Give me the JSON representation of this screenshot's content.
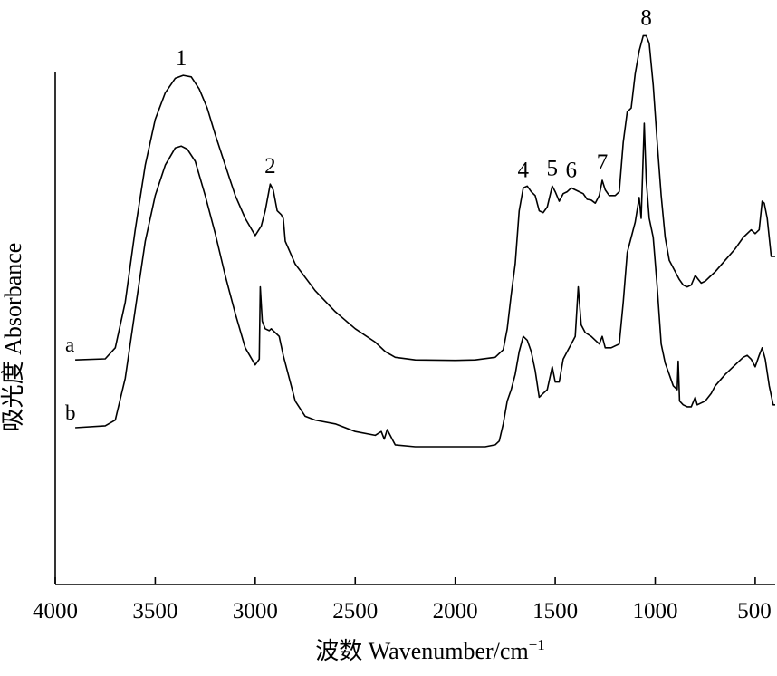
{
  "chart_data": {
    "type": "line",
    "xlabel": "波数 Wavenumber/cm",
    "xlabel_sup": "−1",
    "ylabel": "吸光度 Absorbance",
    "xlim": [
      4000,
      400
    ],
    "x_reversed": true,
    "y_tick_labels": false,
    "grid": false,
    "x_ticks": [
      4000,
      3500,
      3000,
      2500,
      2000,
      1500,
      1000,
      500
    ],
    "series": [
      {
        "name": "a",
        "label": "a",
        "color": "#000000",
        "points": [
          [
            3900,
            0.128
          ],
          [
            3750,
            0.131
          ],
          [
            3700,
            0.16
          ],
          [
            3650,
            0.28
          ],
          [
            3600,
            0.47
          ],
          [
            3550,
            0.64
          ],
          [
            3500,
            0.76
          ],
          [
            3450,
            0.83
          ],
          [
            3400,
            0.868
          ],
          [
            3360,
            0.876
          ],
          [
            3320,
            0.872
          ],
          [
            3280,
            0.84
          ],
          [
            3240,
            0.79
          ],
          [
            3200,
            0.72
          ],
          [
            3150,
            0.64
          ],
          [
            3100,
            0.56
          ],
          [
            3050,
            0.5
          ],
          [
            3000,
            0.455
          ],
          [
            2970,
            0.48
          ],
          [
            2950,
            0.52
          ],
          [
            2925,
            0.59
          ],
          [
            2910,
            0.575
          ],
          [
            2890,
            0.52
          ],
          [
            2870,
            0.51
          ],
          [
            2860,
            0.5
          ],
          [
            2850,
            0.44
          ],
          [
            2800,
            0.38
          ],
          [
            2700,
            0.31
          ],
          [
            2600,
            0.255
          ],
          [
            2500,
            0.21
          ],
          [
            2400,
            0.175
          ],
          [
            2350,
            0.15
          ],
          [
            2300,
            0.135
          ],
          [
            2200,
            0.128
          ],
          [
            2000,
            0.127
          ],
          [
            1900,
            0.128
          ],
          [
            1800,
            0.135
          ],
          [
            1760,
            0.155
          ],
          [
            1740,
            0.21
          ],
          [
            1720,
            0.3
          ],
          [
            1700,
            0.38
          ],
          [
            1680,
            0.52
          ],
          [
            1660,
            0.58
          ],
          [
            1640,
            0.585
          ],
          [
            1620,
            0.57
          ],
          [
            1600,
            0.56
          ],
          [
            1580,
            0.52
          ],
          [
            1560,
            0.515
          ],
          [
            1540,
            0.53
          ],
          [
            1515,
            0.585
          ],
          [
            1500,
            0.57
          ],
          [
            1480,
            0.545
          ],
          [
            1460,
            0.565
          ],
          [
            1440,
            0.57
          ],
          [
            1420,
            0.58
          ],
          [
            1400,
            0.575
          ],
          [
            1380,
            0.57
          ],
          [
            1360,
            0.565
          ],
          [
            1340,
            0.55
          ],
          [
            1320,
            0.548
          ],
          [
            1300,
            0.54
          ],
          [
            1280,
            0.56
          ],
          [
            1265,
            0.6
          ],
          [
            1250,
            0.575
          ],
          [
            1230,
            0.56
          ],
          [
            1200,
            0.56
          ],
          [
            1180,
            0.57
          ],
          [
            1160,
            0.7
          ],
          [
            1140,
            0.78
          ],
          [
            1120,
            0.79
          ],
          [
            1100,
            0.88
          ],
          [
            1080,
            0.94
          ],
          [
            1060,
            0.98
          ],
          [
            1045,
            0.98
          ],
          [
            1030,
            0.96
          ],
          [
            1010,
            0.85
          ],
          [
            990,
            0.7
          ],
          [
            970,
            0.56
          ],
          [
            950,
            0.45
          ],
          [
            930,
            0.39
          ],
          [
            900,
            0.36
          ],
          [
            880,
            0.34
          ],
          [
            860,
            0.325
          ],
          [
            840,
            0.32
          ],
          [
            820,
            0.325
          ],
          [
            800,
            0.35
          ],
          [
            785,
            0.34
          ],
          [
            770,
            0.33
          ],
          [
            750,
            0.335
          ],
          [
            720,
            0.35
          ],
          [
            700,
            0.36
          ],
          [
            650,
            0.39
          ],
          [
            600,
            0.42
          ],
          [
            560,
            0.45
          ],
          [
            520,
            0.47
          ],
          [
            500,
            0.46
          ],
          [
            480,
            0.47
          ],
          [
            465,
            0.545
          ],
          [
            455,
            0.54
          ],
          [
            440,
            0.5
          ],
          [
            420,
            0.4
          ],
          [
            400,
            0.4
          ]
        ]
      },
      {
        "name": "b",
        "label": "b",
        "color": "#000000",
        "points": [
          [
            3900,
            0.05
          ],
          [
            3750,
            0.055
          ],
          [
            3700,
            0.07
          ],
          [
            3650,
            0.18
          ],
          [
            3600,
            0.36
          ],
          [
            3550,
            0.54
          ],
          [
            3500,
            0.66
          ],
          [
            3450,
            0.74
          ],
          [
            3400,
            0.785
          ],
          [
            3370,
            0.79
          ],
          [
            3340,
            0.782
          ],
          [
            3300,
            0.75
          ],
          [
            3250,
            0.66
          ],
          [
            3200,
            0.56
          ],
          [
            3150,
            0.45
          ],
          [
            3100,
            0.35
          ],
          [
            3050,
            0.26
          ],
          [
            3000,
            0.215
          ],
          [
            2980,
            0.23
          ],
          [
            2975,
            0.42
          ],
          [
            2965,
            0.33
          ],
          [
            2950,
            0.31
          ],
          [
            2930,
            0.305
          ],
          [
            2920,
            0.31
          ],
          [
            2900,
            0.3
          ],
          [
            2880,
            0.29
          ],
          [
            2860,
            0.24
          ],
          [
            2800,
            0.12
          ],
          [
            2750,
            0.08
          ],
          [
            2700,
            0.07
          ],
          [
            2600,
            0.06
          ],
          [
            2500,
            0.04
          ],
          [
            2400,
            0.03
          ],
          [
            2370,
            0.04
          ],
          [
            2355,
            0.02
          ],
          [
            2340,
            0.045
          ],
          [
            2310,
            0.015
          ],
          [
            2300,
            0.005
          ],
          [
            2200,
            0.0
          ],
          [
            2000,
            0.0
          ],
          [
            1850,
            0.0
          ],
          [
            1800,
            0.005
          ],
          [
            1780,
            0.015
          ],
          [
            1760,
            0.06
          ],
          [
            1740,
            0.12
          ],
          [
            1720,
            0.15
          ],
          [
            1700,
            0.19
          ],
          [
            1680,
            0.25
          ],
          [
            1660,
            0.29
          ],
          [
            1640,
            0.28
          ],
          [
            1620,
            0.25
          ],
          [
            1600,
            0.2
          ],
          [
            1580,
            0.13
          ],
          [
            1560,
            0.14
          ],
          [
            1540,
            0.15
          ],
          [
            1515,
            0.21
          ],
          [
            1500,
            0.17
          ],
          [
            1480,
            0.17
          ],
          [
            1460,
            0.23
          ],
          [
            1440,
            0.25
          ],
          [
            1420,
            0.27
          ],
          [
            1400,
            0.29
          ],
          [
            1385,
            0.42
          ],
          [
            1370,
            0.32
          ],
          [
            1350,
            0.3
          ],
          [
            1320,
            0.29
          ],
          [
            1300,
            0.28
          ],
          [
            1280,
            0.27
          ],
          [
            1265,
            0.29
          ],
          [
            1250,
            0.26
          ],
          [
            1220,
            0.26
          ],
          [
            1180,
            0.27
          ],
          [
            1160,
            0.38
          ],
          [
            1140,
            0.51
          ],
          [
            1120,
            0.55
          ],
          [
            1100,
            0.59
          ],
          [
            1080,
            0.655
          ],
          [
            1070,
            0.6
          ],
          [
            1055,
            0.85
          ],
          [
            1045,
            0.7
          ],
          [
            1030,
            0.6
          ],
          [
            1010,
            0.55
          ],
          [
            990,
            0.42
          ],
          [
            970,
            0.27
          ],
          [
            950,
            0.22
          ],
          [
            930,
            0.19
          ],
          [
            910,
            0.16
          ],
          [
            890,
            0.15
          ],
          [
            885,
            0.225
          ],
          [
            878,
            0.12
          ],
          [
            860,
            0.11
          ],
          [
            840,
            0.105
          ],
          [
            820,
            0.105
          ],
          [
            800,
            0.13
          ],
          [
            790,
            0.11
          ],
          [
            770,
            0.115
          ],
          [
            750,
            0.12
          ],
          [
            720,
            0.14
          ],
          [
            700,
            0.16
          ],
          [
            650,
            0.19
          ],
          [
            600,
            0.215
          ],
          [
            560,
            0.235
          ],
          [
            540,
            0.24
          ],
          [
            520,
            0.23
          ],
          [
            500,
            0.21
          ],
          [
            480,
            0.24
          ],
          [
            465,
            0.26
          ],
          [
            450,
            0.23
          ],
          [
            430,
            0.16
          ],
          [
            410,
            0.11
          ],
          [
            400,
            0.11
          ]
        ]
      }
    ],
    "annotations": [
      {
        "text": "1",
        "x": 3370,
        "series": "a"
      },
      {
        "text": "2",
        "x": 2925,
        "series": "a"
      },
      {
        "text": "4",
        "x": 1660,
        "series": "a"
      },
      {
        "text": "5",
        "x": 1515,
        "series": "a"
      },
      {
        "text": "6",
        "x": 1420,
        "series": "a"
      },
      {
        "text": "7",
        "x": 1265,
        "series": "a"
      },
      {
        "text": "8",
        "x": 1045,
        "series": "a"
      }
    ]
  }
}
